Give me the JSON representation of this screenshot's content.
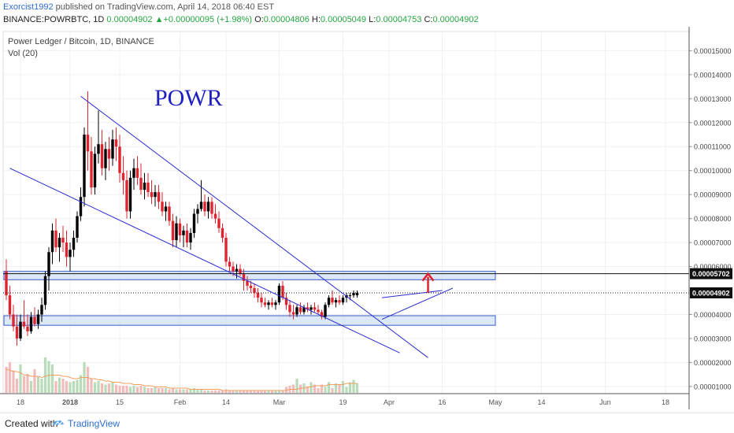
{
  "header": {
    "author": "Exorcist1992",
    "published": "published on TradingView.com, April 14, 2018 06:40 EST",
    "symbol": "BINANCE:POWRBTC, 1D",
    "last": "0.00004902",
    "change_arrow": "▲",
    "change": "+0.00000095 (+1.98%)",
    "o_label": "O:",
    "o": "0.00004806",
    "h_label": "H:",
    "h": "0.00005049",
    "l_label": "L:",
    "l": "0.00004753",
    "c_label": "C:",
    "c": "0.00004902"
  },
  "legend": {
    "title": "Power Ledger / Bitcoin, 1D, BINANCE",
    "indicator": "Vol (20)"
  },
  "annotation": {
    "text": "POWR",
    "color": "#2020c0"
  },
  "colors": {
    "up": "#000000",
    "down": "#e0242f",
    "vol_up": "#b7dcb7",
    "vol_down": "#f2bcbc",
    "trendline": "#2b2bd0",
    "zone_fill": "#cfe0f4",
    "zone_border": "#3a5cc8",
    "arrow": "#e0242f",
    "ma": "#f0a060",
    "grid": "#eef0f3"
  },
  "chart_data": {
    "type": "candlestick",
    "title": "Power Ledger / Bitcoin, 1D, BINANCE",
    "y_axis": {
      "min": 7e-06,
      "max": 0.000158,
      "ticks": [
        "0.00001000",
        "0.00002000",
        "0.00003000",
        "0.00004000",
        "0.00005000",
        "0.00006000",
        "0.00007000",
        "0.00008000",
        "0.00009000",
        "0.00010000",
        "0.00011000",
        "0.00012000",
        "0.00013000",
        "0.00014000",
        "0.00015000"
      ],
      "price_labels": [
        {
          "text": "0.00005702",
          "value": 5.702e-05,
          "line": "solid"
        },
        {
          "text": "0.00004902",
          "value": 4.902e-05,
          "line": "dotted"
        }
      ]
    },
    "x_axis": {
      "ticks": [
        {
          "label": "18",
          "day": 4
        },
        {
          "label": "2018",
          "day": 18
        },
        {
          "label": "15",
          "day": 32
        },
        {
          "label": "Feb",
          "day": 49
        },
        {
          "label": "14",
          "day": 62
        },
        {
          "label": "Mar",
          "day": 77
        },
        {
          "label": "19",
          "day": 95
        },
        {
          "label": "Apr",
          "day": 108
        },
        {
          "label": "16",
          "day": 123
        },
        {
          "label": "May",
          "day": 138
        },
        {
          "label": "14",
          "day": 151
        },
        {
          "label": "Jun",
          "day": 169
        },
        {
          "label": "18",
          "day": 186
        }
      ],
      "start": "2017-12-14",
      "days": 188
    },
    "candles": [
      [
        5.8e-05,
        6.3e-05,
        4.6e-05,
        4.8e-05
      ],
      [
        4.8e-05,
        5.2e-05,
        3.8e-05,
        4e-05
      ],
      [
        4e-05,
        4.4e-05,
        3.3e-05,
        3.5e-05
      ],
      [
        3.5e-05,
        4e-05,
        2.7e-05,
        3e-05
      ],
      [
        3e-05,
        4e-05,
        2.9e-05,
        3.7e-05
      ],
      [
        3.7e-05,
        4.6e-05,
        3.4e-05,
        3.5e-05
      ],
      [
        3.5e-05,
        4e-05,
        3.1e-05,
        3.3e-05
      ],
      [
        3.3e-05,
        4.1e-05,
        3.2e-05,
        3.9e-05
      ],
      [
        3.9e-05,
        4.3e-05,
        3.5e-05,
        3.6e-05
      ],
      [
        3.6e-05,
        4.2e-05,
        3.4e-05,
        4e-05
      ],
      [
        4e-05,
        4.7e-05,
        3.7e-05,
        4.4e-05
      ],
      [
        4.4e-05,
        5.8e-05,
        4.2e-05,
        5.6e-05
      ],
      [
        5.6e-05,
        6.8e-05,
        5e-05,
        6.6e-05
      ],
      [
        6.6e-05,
        7.8e-05,
        6.1e-05,
        7.5e-05
      ],
      [
        7.5e-05,
        8e-05,
        6.6e-05,
        6.8e-05
      ],
      [
        6.8e-05,
        7.4e-05,
        6.2e-05,
        7.2e-05
      ],
      [
        7.2e-05,
        7.7e-05,
        6.6e-05,
        7e-05
      ],
      [
        7e-05,
        7.5e-05,
        6e-05,
        6.4e-05
      ],
      [
        6.4e-05,
        7e-05,
        5.8e-05,
        6.7e-05
      ],
      [
        6.7e-05,
        7.5e-05,
        6.4e-05,
        7.2e-05
      ],
      [
        7.2e-05,
        8.3e-05,
        7e-05,
        8.1e-05
      ],
      [
        8.1e-05,
        9.3e-05,
        7.9e-05,
        8.9e-05
      ],
      [
        8.9e-05,
        0.000118,
        8.5e-05,
        0.000115
      ],
      [
        0.000115,
        0.000133,
        0.0001,
        0.000108
      ],
      [
        0.000108,
        0.000114,
        9e-05,
        9.3e-05
      ],
      [
        9.3e-05,
        0.00011,
        9e-05,
        0.000107
      ],
      [
        0.000107,
        0.000125,
        0.000103,
        0.000111
      ],
      [
        0.000111,
        0.000117,
        9.8e-05,
        0.000101
      ],
      [
        0.000101,
        0.000112,
        9.6e-05,
        0.000109
      ],
      [
        0.000109,
        0.000114,
        0.0001,
        0.000105
      ],
      [
        0.000105,
        0.000117,
        0.000102,
        0.000113
      ],
      [
        0.000113,
        0.000118,
        0.000104,
        0.00011
      ],
      [
        0.00011,
        0.000115,
        9.5e-05,
        9.9e-05
      ],
      [
        9.9e-05,
        0.000106,
        9e-05,
        9.6e-05
      ],
      [
        9.6e-05,
        0.0001,
        8e-05,
        8.3e-05
      ],
      [
        8.3e-05,
        0.0001,
        8e-05,
        9.7e-05
      ],
      [
        9.7e-05,
        0.000105,
        9.2e-05,
        0.000101
      ],
      [
        0.000101,
        0.000106,
        9.4e-05,
        9.7e-05
      ],
      [
        9.7e-05,
        0.000103,
        9e-05,
        9.2e-05
      ],
      [
        9.2e-05,
        9.9e-05,
        8.8e-05,
        9.5e-05
      ],
      [
        9.5e-05,
        9.9e-05,
        8.9e-05,
        9.1e-05
      ],
      [
        9.1e-05,
        9.6e-05,
        8.6e-05,
        8.9e-05
      ],
      [
        8.9e-05,
        9.4e-05,
        8.5e-05,
        9.1e-05
      ],
      [
        9.1e-05,
        9.4e-05,
        8.4e-05,
        8.7e-05
      ],
      [
        8.7e-05,
        9.1e-05,
        8.1e-05,
        8.3e-05
      ],
      [
        8.3e-05,
        8.7e-05,
        7.9e-05,
        8.5e-05
      ],
      [
        8.5e-05,
        8.7e-05,
        7.7e-05,
        7.9e-05
      ],
      [
        7.9e-05,
        8.2e-05,
        6.8e-05,
        7.1e-05
      ],
      [
        7.1e-05,
        8.1e-05,
        6.8e-05,
        7.8e-05
      ],
      [
        7.8e-05,
        8e-05,
        7e-05,
        7.3e-05
      ],
      [
        7.3e-05,
        7.7e-05,
        6.8e-05,
        7.5e-05
      ],
      [
        7.5e-05,
        7.8e-05,
        6.8e-05,
        7e-05
      ],
      [
        7e-05,
        7.6e-05,
        6.7e-05,
        7.4e-05
      ],
      [
        7.4e-05,
        8.4e-05,
        7.2e-05,
        8.2e-05
      ],
      [
        8.2e-05,
        8.6e-05,
        7.8e-05,
        8.4e-05
      ],
      [
        8.4e-05,
        9.6e-05,
        8.3e-05,
        8.7e-05
      ],
      [
        8.7e-05,
        9e-05,
        8.1e-05,
        8.3e-05
      ],
      [
        8.3e-05,
        8.9e-05,
        8e-05,
        8.7e-05
      ],
      [
        8.7e-05,
        8.9e-05,
        8e-05,
        8.2e-05
      ],
      [
        8.2e-05,
        8.6e-05,
        7.8e-05,
        8e-05
      ],
      [
        8e-05,
        8.3e-05,
        7.4e-05,
        7.6e-05
      ],
      [
        7.6e-05,
        7.8e-05,
        7e-05,
        7.2e-05
      ],
      [
        7.2e-05,
        7.4e-05,
        6e-05,
        6.2e-05
      ],
      [
        6.2e-05,
        6.4e-05,
        5.8e-05,
        6e-05
      ],
      [
        6e-05,
        6.2e-05,
        5.6e-05,
        5.8e-05
      ],
      [
        5.8e-05,
        6.1e-05,
        5.5e-05,
        5.9e-05
      ],
      [
        5.9e-05,
        6.1e-05,
        5.6e-05,
        5.7e-05
      ],
      [
        5.7e-05,
        5.9e-05,
        5e-05,
        5.4e-05
      ],
      [
        5.4e-05,
        5.6e-05,
        5e-05,
        5.2e-05
      ],
      [
        5.2e-05,
        5.4e-05,
        4.9e-05,
        5.1e-05
      ],
      [
        5.1e-05,
        5.3e-05,
        4.7e-05,
        4.9e-05
      ],
      [
        4.9e-05,
        5.1e-05,
        4.5e-05,
        4.7e-05
      ],
      [
        4.7e-05,
        4.9e-05,
        4.3e-05,
        4.5e-05
      ],
      [
        4.5e-05,
        4.7e-05,
        4.3e-05,
        4.4e-05
      ],
      [
        4.4e-05,
        4.6e-05,
        4.2e-05,
        4.5e-05
      ],
      [
        4.5e-05,
        4.7e-05,
        4.3e-05,
        4.4e-05
      ],
      [
        4.4e-05,
        4.6e-05,
        4.2e-05,
        4.5e-05
      ],
      [
        4.5e-05,
        5.3e-05,
        4.4e-05,
        5.2e-05
      ],
      [
        5.2e-05,
        5.4e-05,
        4.6e-05,
        4.7e-05
      ],
      [
        4.7e-05,
        4.9e-05,
        4.2e-05,
        4.4e-05
      ],
      [
        4.4e-05,
        4.6e-05,
        3.9e-05,
        4.1e-05
      ],
      [
        4.1e-05,
        4.4e-05,
        3.8e-05,
        4e-05
      ],
      [
        4e-05,
        4.4e-05,
        3.9e-05,
        4.3e-05
      ],
      [
        4.3e-05,
        4.5e-05,
        4e-05,
        4.1e-05
      ],
      [
        4.1e-05,
        4.4e-05,
        4e-05,
        4.3e-05
      ],
      [
        4.3e-05,
        4.5e-05,
        4.1e-05,
        4.2e-05
      ],
      [
        4.2e-05,
        4.4e-05,
        4e-05,
        4.3e-05
      ],
      [
        4.3e-05,
        4.5e-05,
        4.1e-05,
        4.2e-05
      ],
      [
        4.2e-05,
        4.4e-05,
        4e-05,
        4.1e-05
      ],
      [
        4.1e-05,
        4.2e-05,
        3.8e-05,
        3.9e-05
      ],
      [
        3.9e-05,
        4.5e-05,
        3.8e-05,
        4.4e-05
      ],
      [
        4.4e-05,
        4.8e-05,
        4.3e-05,
        4.7e-05
      ],
      [
        4.7e-05,
        5e-05,
        4.4e-05,
        4.5e-05
      ],
      [
        4.5e-05,
        4.7e-05,
        4.3e-05,
        4.6e-05
      ],
      [
        4.6e-05,
        4.8e-05,
        4.4e-05,
        4.5e-05
      ],
      [
        4.5e-05,
        4.8e-05,
        4.4e-05,
        4.7e-05
      ],
      [
        4.7e-05,
        4.9e-05,
        4.5e-05,
        4.8e-05
      ],
      [
        4.8e-05,
        4.9e-05,
        4.6e-05,
        4.8e-05
      ],
      [
        4.8e-05,
        5e-05,
        4.7e-05,
        4.9e-05
      ],
      [
        4.8e-05,
        5e-05,
        4.7e-05,
        4.9e-05
      ]
    ],
    "volume": [
      22,
      26,
      19,
      12,
      24,
      14,
      16,
      10,
      20,
      14,
      12,
      30,
      27,
      24,
      10,
      13,
      12,
      10,
      9,
      10,
      11,
      15,
      26,
      22,
      12,
      9,
      10,
      8,
      7,
      8,
      9,
      7,
      6,
      6,
      6,
      5,
      6,
      5,
      6,
      5,
      4,
      4,
      5,
      4,
      4,
      4,
      3,
      4,
      3,
      3,
      3,
      3,
      3,
      4,
      3,
      3,
      2,
      2,
      2,
      2,
      2,
      2,
      3,
      2,
      2,
      2,
      2,
      2,
      2,
      2,
      2,
      2,
      2,
      2,
      2,
      2,
      2,
      2,
      2,
      5,
      6,
      7,
      12,
      7,
      8,
      5,
      9,
      7,
      4,
      7,
      5,
      9,
      4,
      8,
      7,
      10,
      5,
      9,
      11,
      8
    ],
    "volume_ma": [
      20,
      19,
      18,
      18,
      17,
      15,
      15,
      14,
      14,
      14,
      13,
      14,
      15,
      15,
      15,
      15,
      14,
      14,
      13,
      12,
      12,
      13,
      13,
      13,
      12,
      12,
      11,
      11,
      10,
      10,
      9,
      9,
      9,
      8,
      8,
      8,
      7,
      7,
      7,
      6,
      6,
      6,
      5,
      5,
      5,
      5,
      4,
      4,
      4,
      4,
      4,
      4,
      3,
      3,
      3,
      3,
      3,
      3,
      3,
      3,
      3,
      2,
      2,
      2,
      2,
      2,
      2,
      2,
      2,
      2,
      2,
      2,
      2,
      2,
      2,
      2,
      2,
      2,
      2,
      2,
      3,
      3,
      3,
      4,
      4,
      5,
      5,
      6,
      6,
      6,
      6,
      7,
      7,
      7,
      7,
      7,
      8,
      8,
      8,
      8
    ],
    "volume_ylim": [
      0,
      60
    ],
    "zones": [
      {
        "top": 5.8e-05,
        "bottom": 5.45e-05
      },
      {
        "top": 3.95e-05,
        "bottom": 3.55e-05
      }
    ],
    "trendlines": [
      {
        "from": [
          21,
          0.000131
        ],
        "to": [
          119,
          2.2e-05
        ]
      },
      {
        "from": [
          1,
          0.000101
        ],
        "to": [
          111,
          2.4e-05
        ]
      },
      {
        "from": [
          106,
          3.8e-05
        ],
        "to": [
          126,
          5.1e-05
        ]
      },
      {
        "from": [
          106,
          4.7e-05
        ],
        "to": [
          123,
          5e-05
        ]
      }
    ],
    "arrow": {
      "from": [
        119,
        4.9e-05
      ],
      "to": [
        119,
        5.7e-05
      ]
    }
  },
  "footer": {
    "created": "Created with",
    "brand": "TradingView"
  }
}
